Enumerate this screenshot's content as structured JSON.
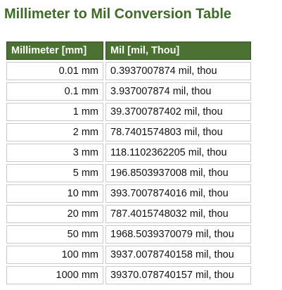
{
  "title": "Millimeter to Mil Conversion Table",
  "headers": {
    "mm": "Millimeter [mm]",
    "mil": "Mil [mil, Thou]"
  },
  "rows": [
    {
      "mm": "0.01 mm",
      "mil": "0.3937007874 mil, thou"
    },
    {
      "mm": "0.1 mm",
      "mil": "3.937007874 mil, thou"
    },
    {
      "mm": "1 mm",
      "mil": "39.3700787402 mil, thou"
    },
    {
      "mm": "2 mm",
      "mil": "78.7401574803 mil, thou"
    },
    {
      "mm": "3 mm",
      "mil": "118.1102362205 mil, thou"
    },
    {
      "mm": "5 mm",
      "mil": "196.8503937008 mil, thou"
    },
    {
      "mm": "10 mm",
      "mil": "393.7007874016 mil, thou"
    },
    {
      "mm": "20 mm",
      "mil": "787.4015748032 mil, thou"
    },
    {
      "mm": "50 mm",
      "mil": "1968.5039370079 mil, thou"
    },
    {
      "mm": "100 mm",
      "mil": "3937.0078740158 mil, thou"
    },
    {
      "mm": "1000 mm",
      "mil": "39370.078740157 mil, thou"
    }
  ],
  "colors": {
    "title": "#3e6b29",
    "header_bg": "#4b7233",
    "header_text": "#ffffff",
    "cell_border": "#c9c9c9"
  }
}
